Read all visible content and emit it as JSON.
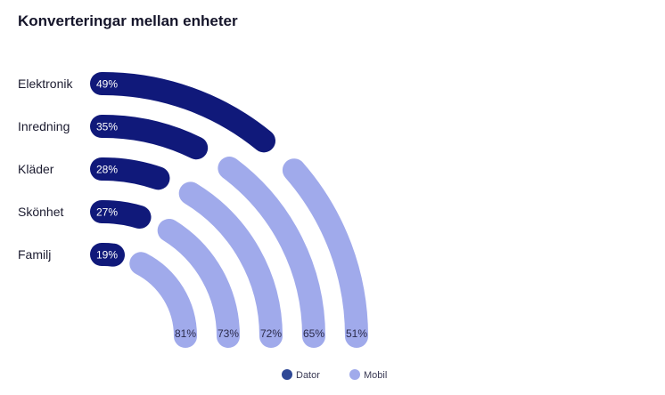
{
  "chart_data": {
    "type": "radial-bar",
    "title": "Konverteringar mellan enheter",
    "categories": [
      "Elektronik",
      "Inredning",
      "Kläder",
      "Skönhet",
      "Familj"
    ],
    "series": [
      {
        "name": "Dator",
        "color": "#10197a",
        "values": [
          49,
          35,
          28,
          27,
          19
        ]
      },
      {
        "name": "Mobil",
        "color": "#a0aaeb",
        "values": [
          51,
          65,
          72,
          73,
          81
        ]
      }
    ],
    "labels": {
      "dator": [
        "49%",
        "35%",
        "28%",
        "27%",
        "19%"
      ],
      "mobil": [
        "51%",
        "65%",
        "72%",
        "73%",
        "81%"
      ]
    },
    "legend": {
      "position": "bottom-center",
      "items": [
        {
          "label": "Dator",
          "color": "#2f4896"
        },
        {
          "label": "Mobil",
          "color": "#a0aaeb"
        }
      ]
    }
  }
}
